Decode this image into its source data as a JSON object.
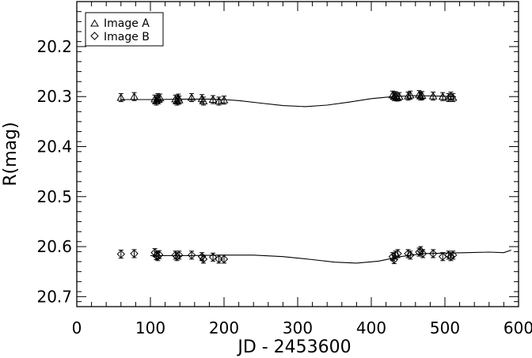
{
  "chart_data": {
    "type": "scatter",
    "xlabel": "JD - 2453600",
    "ylabel": "R(mag)",
    "xlim": [
      0,
      600
    ],
    "ylim": [
      20.72,
      20.11
    ],
    "y_inverted": true,
    "grid": false,
    "legend_position": "top-left",
    "xticks": [
      "0",
      "100",
      "200",
      "300",
      "400",
      "500",
      "600"
    ],
    "xtick_values": [
      0,
      100,
      200,
      300,
      400,
      500,
      600
    ],
    "yticks": [
      "20.2",
      "20.3",
      "20.4",
      "20.5",
      "20.6",
      "20.7"
    ],
    "ytick_values": [
      20.2,
      20.3,
      20.4,
      20.5,
      20.6,
      20.7
    ],
    "series": [
      {
        "name": "Image A",
        "marker": "triangle",
        "points": [
          {
            "x": 60,
            "y": 20.302,
            "err": 0.008
          },
          {
            "x": 78,
            "y": 20.3,
            "err": 0.008
          },
          {
            "x": 106,
            "y": 20.305,
            "err": 0.008
          },
          {
            "x": 108,
            "y": 20.309,
            "err": 0.008
          },
          {
            "x": 110,
            "y": 20.302,
            "err": 0.008
          },
          {
            "x": 111,
            "y": 20.306,
            "err": 0.008
          },
          {
            "x": 113,
            "y": 20.303,
            "err": 0.008
          },
          {
            "x": 134,
            "y": 20.305,
            "err": 0.008
          },
          {
            "x": 136,
            "y": 20.309,
            "err": 0.008
          },
          {
            "x": 138,
            "y": 20.303,
            "err": 0.008
          },
          {
            "x": 139,
            "y": 20.307,
            "err": 0.008
          },
          {
            "x": 156,
            "y": 20.302,
            "err": 0.008
          },
          {
            "x": 170,
            "y": 20.304,
            "err": 0.008
          },
          {
            "x": 172,
            "y": 20.309,
            "err": 0.008
          },
          {
            "x": 185,
            "y": 20.306,
            "err": 0.008
          },
          {
            "x": 193,
            "y": 20.309,
            "err": 0.008
          },
          {
            "x": 200,
            "y": 20.307,
            "err": 0.008
          },
          {
            "x": 429,
            "y": 20.297,
            "err": 0.008
          },
          {
            "x": 431,
            "y": 20.3,
            "err": 0.008
          },
          {
            "x": 433,
            "y": 20.298,
            "err": 0.008
          },
          {
            "x": 435,
            "y": 20.301,
            "err": 0.008
          },
          {
            "x": 438,
            "y": 20.3,
            "err": 0.008
          },
          {
            "x": 450,
            "y": 20.299,
            "err": 0.008
          },
          {
            "x": 453,
            "y": 20.297,
            "err": 0.008
          },
          {
            "x": 465,
            "y": 20.296,
            "err": 0.008
          },
          {
            "x": 467,
            "y": 20.299,
            "err": 0.008
          },
          {
            "x": 469,
            "y": 20.298,
            "err": 0.008
          },
          {
            "x": 484,
            "y": 20.299,
            "err": 0.008
          },
          {
            "x": 497,
            "y": 20.3,
            "err": 0.008
          },
          {
            "x": 505,
            "y": 20.302,
            "err": 0.008
          },
          {
            "x": 508,
            "y": 20.299,
            "err": 0.008
          },
          {
            "x": 511,
            "y": 20.302,
            "err": 0.008
          }
        ],
        "model_curve": [
          [
            60,
            20.306
          ],
          [
            100,
            20.306
          ],
          [
            150,
            20.305
          ],
          [
            180,
            20.305
          ],
          [
            200,
            20.306
          ],
          [
            220,
            20.308
          ],
          [
            250,
            20.313
          ],
          [
            280,
            20.318
          ],
          [
            310,
            20.32
          ],
          [
            340,
            20.317
          ],
          [
            370,
            20.311
          ],
          [
            400,
            20.304
          ],
          [
            430,
            20.3
          ],
          [
            460,
            20.298
          ],
          [
            490,
            20.299
          ],
          [
            515,
            20.3
          ]
        ]
      },
      {
        "name": "Image B",
        "marker": "diamond",
        "points": [
          {
            "x": 60,
            "y": 20.615,
            "err": 0.008
          },
          {
            "x": 78,
            "y": 20.614,
            "err": 0.008
          },
          {
            "x": 106,
            "y": 20.612,
            "err": 0.008
          },
          {
            "x": 108,
            "y": 20.618,
            "err": 0.008
          },
          {
            "x": 110,
            "y": 20.62,
            "err": 0.008
          },
          {
            "x": 112,
            "y": 20.616,
            "err": 0.008
          },
          {
            "x": 134,
            "y": 20.617,
            "err": 0.008
          },
          {
            "x": 136,
            "y": 20.62,
            "err": 0.008
          },
          {
            "x": 139,
            "y": 20.617,
            "err": 0.008
          },
          {
            "x": 156,
            "y": 20.617,
            "err": 0.008
          },
          {
            "x": 170,
            "y": 20.62,
            "err": 0.008
          },
          {
            "x": 172,
            "y": 20.625,
            "err": 0.008
          },
          {
            "x": 185,
            "y": 20.621,
            "err": 0.008
          },
          {
            "x": 193,
            "y": 20.625,
            "err": 0.008
          },
          {
            "x": 200,
            "y": 20.625,
            "err": 0.008
          },
          {
            "x": 429,
            "y": 20.62,
            "err": 0.008
          },
          {
            "x": 431,
            "y": 20.626,
            "err": 0.008
          },
          {
            "x": 433,
            "y": 20.617,
            "err": 0.008
          },
          {
            "x": 436,
            "y": 20.614,
            "err": 0.008
          },
          {
            "x": 450,
            "y": 20.614,
            "err": 0.008
          },
          {
            "x": 453,
            "y": 20.617,
            "err": 0.008
          },
          {
            "x": 465,
            "y": 20.611,
            "err": 0.008
          },
          {
            "x": 467,
            "y": 20.608,
            "err": 0.008
          },
          {
            "x": 470,
            "y": 20.614,
            "err": 0.008
          },
          {
            "x": 484,
            "y": 20.614,
            "err": 0.008
          },
          {
            "x": 497,
            "y": 20.62,
            "err": 0.008
          },
          {
            "x": 505,
            "y": 20.617,
            "err": 0.008
          },
          {
            "x": 508,
            "y": 20.62,
            "err": 0.008
          },
          {
            "x": 511,
            "y": 20.617,
            "err": 0.008
          }
        ],
        "model_curve": [
          [
            100,
            20.618
          ],
          [
            150,
            20.618
          ],
          [
            200,
            20.617
          ],
          [
            240,
            20.617
          ],
          [
            280,
            20.62
          ],
          [
            320,
            20.626
          ],
          [
            350,
            20.631
          ],
          [
            380,
            20.633
          ],
          [
            410,
            20.629
          ],
          [
            440,
            20.62
          ],
          [
            470,
            20.614
          ],
          [
            500,
            20.613
          ],
          [
            530,
            20.612
          ],
          [
            560,
            20.611
          ],
          [
            580,
            20.612
          ],
          [
            590,
            20.607
          ]
        ]
      }
    ]
  }
}
